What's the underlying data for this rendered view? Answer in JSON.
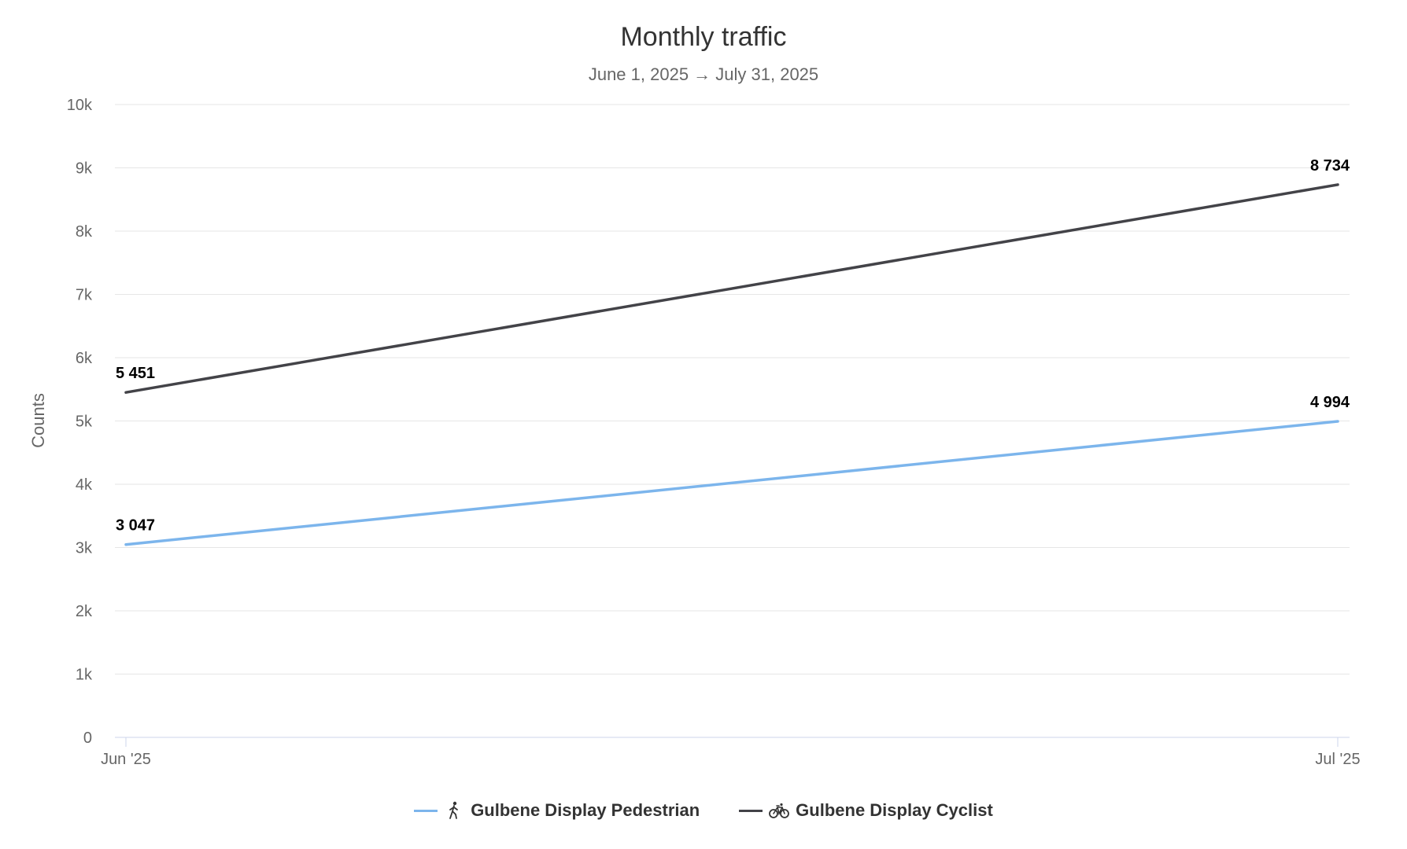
{
  "chart_data": {
    "type": "line",
    "title": "Monthly traffic",
    "subtitle": "June 1, 2025 → July 31, 2025",
    "ylabel": "Counts",
    "xlabel": "",
    "categories": [
      "Jun '25",
      "Jul '25"
    ],
    "ylim": [
      0,
      10000
    ],
    "yticks": [
      0,
      1000,
      2000,
      3000,
      4000,
      5000,
      6000,
      7000,
      8000,
      9000,
      10000
    ],
    "ytick_labels": [
      "0",
      "1k",
      "2k",
      "3k",
      "4k",
      "5k",
      "6k",
      "7k",
      "8k",
      "9k",
      "10k"
    ],
    "grid": true,
    "legend_position": "bottom-center",
    "series": [
      {
        "name": "Gulbene Display Pedestrian",
        "icon": "pedestrian-icon",
        "color": "#7cb5ec",
        "values": [
          3047,
          4994
        ],
        "value_labels": [
          "3 047",
          "4 994"
        ]
      },
      {
        "name": "Gulbene Display Cyclist",
        "icon": "bicycle-icon",
        "color": "#434348",
        "values": [
          5451,
          8734
        ],
        "value_labels": [
          "5 451",
          "8 734"
        ]
      }
    ]
  }
}
